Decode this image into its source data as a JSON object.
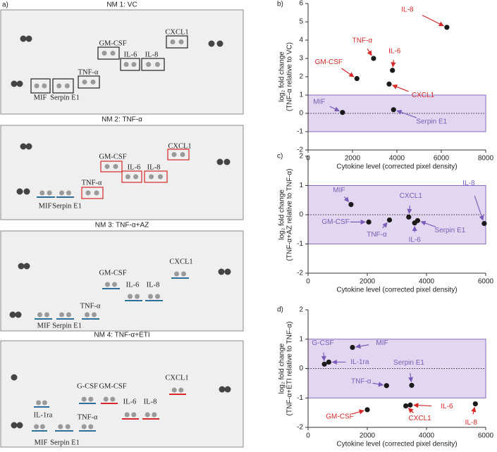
{
  "panel_a": "a)",
  "blots": [
    {
      "title": "NM 1: VC",
      "labels": [
        "CXCL1",
        "GM-CSF",
        "IL-6",
        "IL-8",
        "TNF-α",
        "MIF",
        "Serpin E1"
      ]
    },
    {
      "title": "NM 2: TNF-α",
      "labels": [
        "CXCL1",
        "GM-CSF",
        "IL-6",
        "IL-8",
        "TNF-α",
        "MIF",
        "Serpin E1"
      ]
    },
    {
      "title": "NM 3: TNF-α+AZ",
      "labels": [
        "CXCL1",
        "GM-CSF",
        "IL-6",
        "IL-8",
        "TNF-α",
        "MIF",
        "Serpin E1"
      ]
    },
    {
      "title": "NM 4: TNF-α+ETI",
      "labels": [
        "CXCL1",
        "GM-CSF",
        "G-CSF",
        "IL-6",
        "IL-8",
        "IL-1ra",
        "TNF-α",
        "MIF",
        "Serpin E1"
      ]
    }
  ],
  "chart_data": [
    {
      "type": "scatter",
      "panel": "b)",
      "ylabel": [
        "log₂ fold change",
        "(TNF-α relative to VC)"
      ],
      "xlabel": "Cytokine level (corrected pixel density)",
      "xlim": [
        0,
        8000
      ],
      "xticks": [
        0,
        2000,
        4000,
        6000,
        8000
      ],
      "ylim": [
        -2,
        6
      ],
      "yticks": [
        -2,
        -1,
        0,
        1,
        2,
        3,
        4,
        5,
        6
      ],
      "band": [
        -1,
        1
      ],
      "band_color": "#e2d6f0",
      "reference_line": 0,
      "point_color": "#1a1a1a",
      "labels": [
        "IL-8",
        "TNF-α",
        "IL-6",
        "GM-CSF",
        "CXCL1",
        "MIF",
        "Serpin E1"
      ],
      "x": [
        6250,
        2950,
        3800,
        2200,
        3650,
        1550,
        3850
      ],
      "y": [
        4.7,
        3.0,
        2.35,
        1.9,
        1.6,
        0.05,
        0.2
      ],
      "label_colors": [
        "#d62828",
        "#d62828",
        "#d62828",
        "#d62828",
        "#d62828",
        "#7a5cb8",
        "#7a5cb8"
      ]
    },
    {
      "type": "scatter",
      "panel": "c)",
      "ylabel": [
        "log₂ fold change",
        "(TNF-α+AZ relative to TNF-α)"
      ],
      "xlabel": "Cytokine level (corrected pixel density)",
      "xlim": [
        0,
        6000
      ],
      "xticks": [
        0,
        2000,
        4000,
        6000
      ],
      "ylim": [
        -2,
        2
      ],
      "yticks": [
        -2,
        -1,
        0,
        1,
        2
      ],
      "band": [
        -1,
        1
      ],
      "band_color": "#e2d6f0",
      "reference_line": 0,
      "point_color": "#1a1a1a",
      "labels": [
        "MIF",
        "GM-CSF",
        "TNF-α",
        "CXCL1",
        "IL-6",
        "Serpin E1",
        "IL-8"
      ],
      "x": [
        1450,
        2050,
        2750,
        3400,
        3600,
        3700,
        5950
      ],
      "y": [
        0.35,
        -0.25,
        -0.18,
        -0.08,
        -0.28,
        -0.2,
        -0.3
      ],
      "label_colors": [
        "#7a5cb8",
        "#7a5cb8",
        "#7a5cb8",
        "#7a5cb8",
        "#7a5cb8",
        "#7a5cb8",
        "#7a5cb8"
      ]
    },
    {
      "type": "scatter",
      "panel": "d)",
      "ylabel": [
        "log₂ fold change",
        "(TNF-α+ETI relative to TNF-α)"
      ],
      "xlabel": "Cytokine level (corrected pixel density)",
      "xlim": [
        0,
        6000
      ],
      "xticks": [
        0,
        2000,
        4000,
        6000
      ],
      "ylim": [
        -2,
        2
      ],
      "yticks": [
        -2,
        -1,
        0,
        1,
        2
      ],
      "band": [
        -1,
        1
      ],
      "band_color": "#e2d6f0",
      "reference_line": 0,
      "point_color": "#1a1a1a",
      "labels": [
        "G-CSF",
        "IL-1ra",
        "MIF",
        "TNF-α",
        "Serpin E1",
        "GM-CSF",
        "CXCL1",
        "IL-6",
        "IL-8"
      ],
      "x": [
        550,
        700,
        1500,
        2650,
        3500,
        2000,
        3300,
        3450,
        5650
      ],
      "y": [
        0.15,
        0.22,
        0.72,
        -0.58,
        -0.57,
        -1.4,
        -1.27,
        -1.24,
        -1.2
      ],
      "label_colors": [
        "#7a5cb8",
        "#7a5cb8",
        "#7a5cb8",
        "#7a5cb8",
        "#7a5cb8",
        "#d62828",
        "#d62828",
        "#d62828",
        "#d62828"
      ]
    }
  ]
}
